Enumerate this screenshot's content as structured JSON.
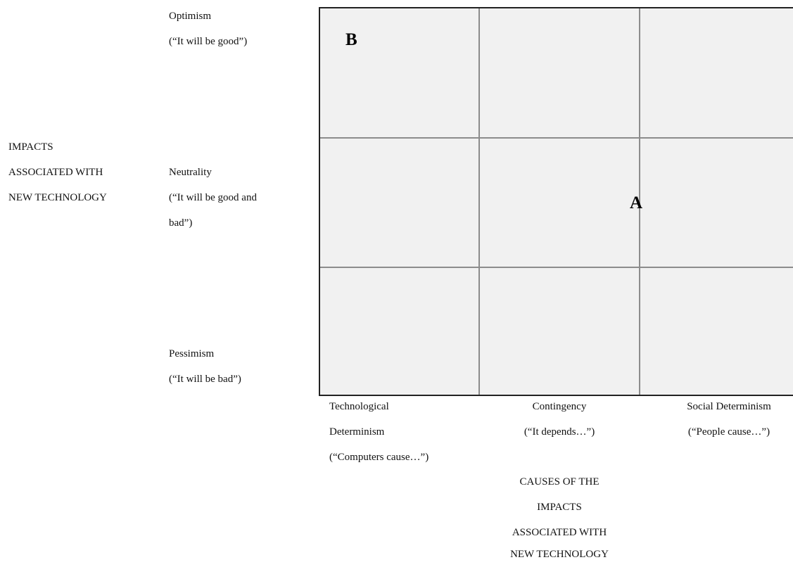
{
  "y_axis": {
    "title_lines": [
      "IMPACTS",
      "ASSOCIATED WITH",
      "NEW TECHNOLOGY"
    ],
    "levels": {
      "top": [
        "Optimism",
        "(“It will be good”)"
      ],
      "middle": [
        "Neutrality",
        "(“It will be good and",
        "bad”)"
      ],
      "bottom": [
        "Pessimism",
        "(“It will be bad”)"
      ]
    }
  },
  "x_axis": {
    "title_lines": [
      "CAUSES OF THE",
      "IMPACTS",
      "ASSOCIATED WITH",
      "NEW TECHNOLOGY"
    ],
    "levels": {
      "left": [
        "Technological",
        "Determinism",
        "(“Computers cause…”)"
      ],
      "center": [
        "Contingency",
        "(“It depends…”)"
      ],
      "right": [
        "Social Determinism",
        "(“People cause…”)"
      ]
    }
  },
  "markers": {
    "a": "A",
    "b": "B"
  },
  "colors": {
    "cell_fill": "#f1f1f1",
    "grid_lines": "#8c8c8c",
    "border": "#222222"
  }
}
